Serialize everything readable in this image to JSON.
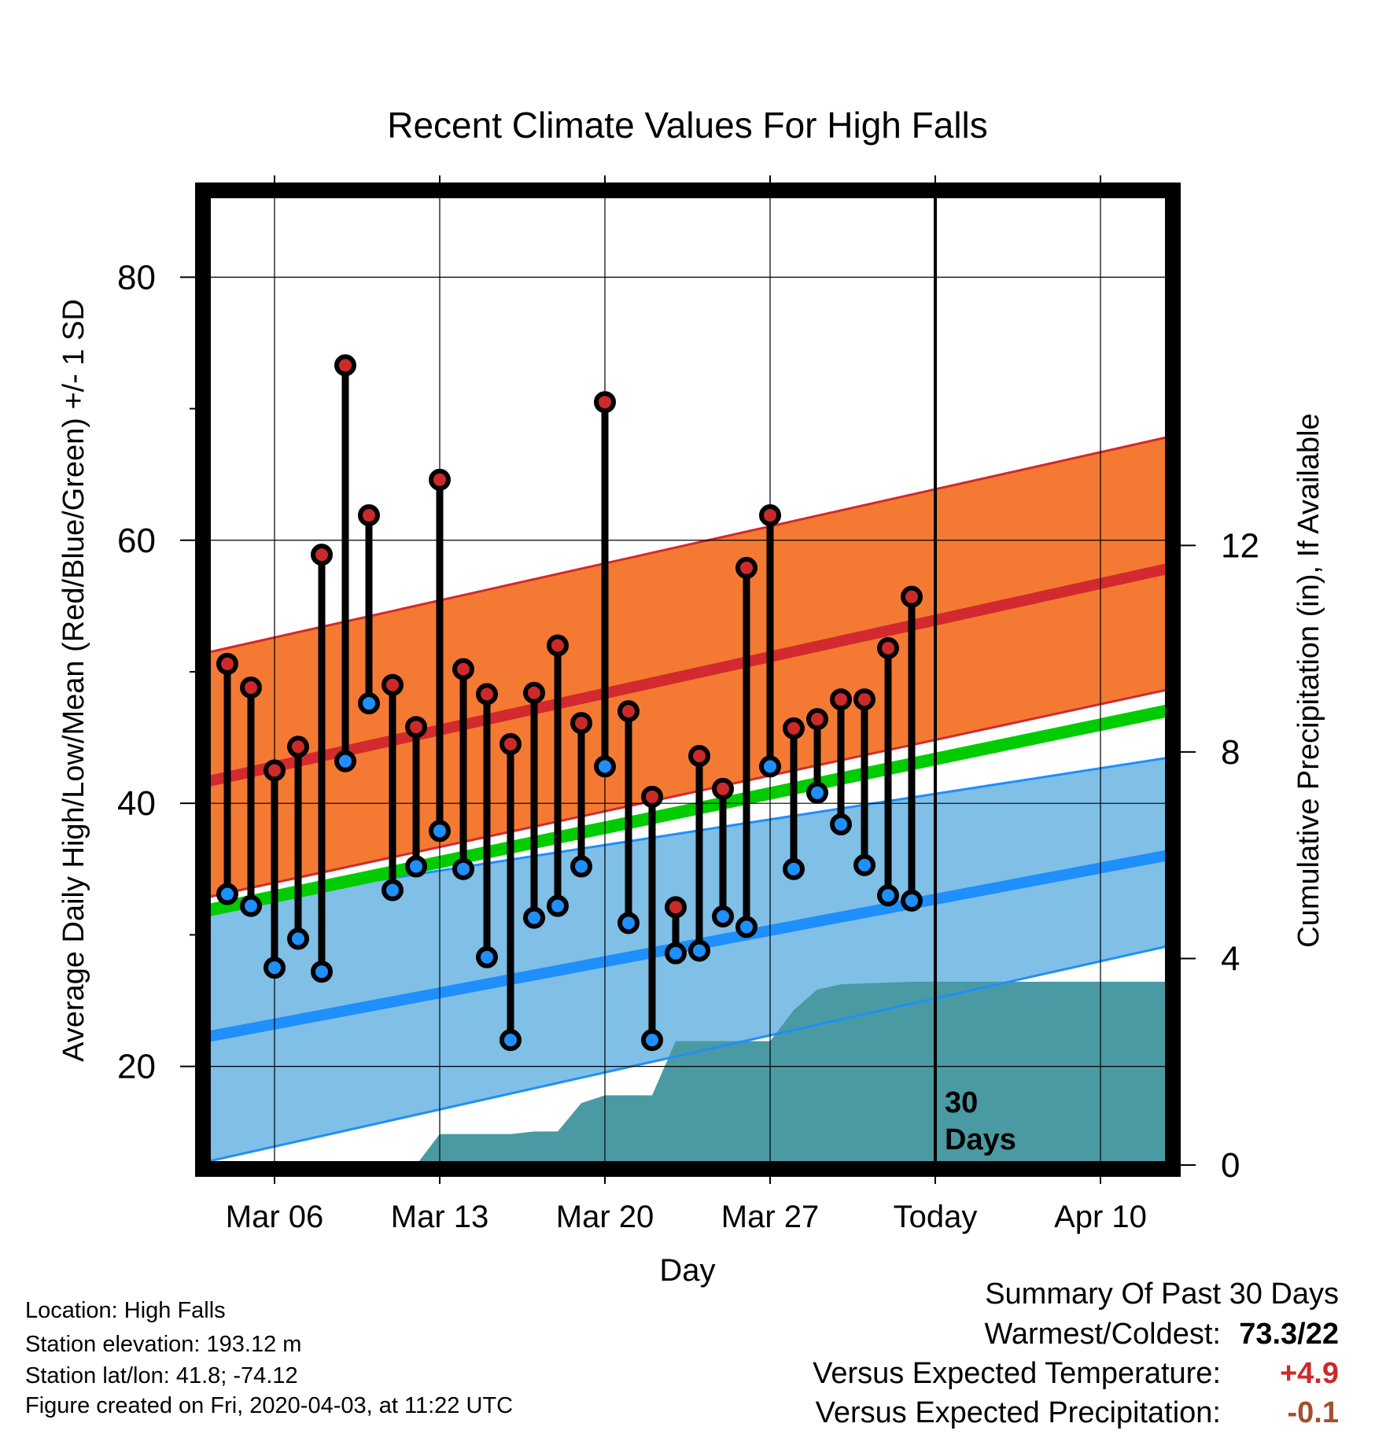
{
  "chart_data": {
    "type": "line",
    "title": "Recent Climate Values For High Falls",
    "xlabel": "Day",
    "ylabel": "Average Daily High/Low/Mean (Red/Blue/Green) +/- 1 SD",
    "y2label": "Cumulative Precipitation (in), If Available",
    "ylim": [
      12.5,
      86.3
    ],
    "y2lim": [
      0,
      18.8
    ],
    "yticks": [
      "20",
      "40",
      "60",
      "80"
    ],
    "y2ticks": [
      "0",
      "4",
      "8",
      "12"
    ],
    "xticks": [
      "Mar 06",
      "Mar 13",
      "Mar 20",
      "Mar 27",
      "Today",
      "Apr 10"
    ],
    "today_label": "30\nDays",
    "days": [
      "Mar 04",
      "Mar 05",
      "Mar 06",
      "Mar 07",
      "Mar 08",
      "Mar 09",
      "Mar 10",
      "Mar 11",
      "Mar 12",
      "Mar 13",
      "Mar 14",
      "Mar 15",
      "Mar 16",
      "Mar 17",
      "Mar 18",
      "Mar 19",
      "Mar 20",
      "Mar 21",
      "Mar 22",
      "Mar 23",
      "Mar 24",
      "Mar 25",
      "Mar 26",
      "Mar 27",
      "Mar 28",
      "Mar 29",
      "Mar 30",
      "Mar 31",
      "Apr 01",
      "Apr 02"
    ],
    "series": [
      {
        "name": "High",
        "values": [
          50.6,
          48.8,
          42.5,
          44.3,
          58.9,
          73.3,
          61.9,
          49.0,
          45.8,
          64.6,
          50.2,
          48.3,
          44.5,
          48.4,
          52.0,
          46.1,
          70.5,
          47.0,
          40.5,
          32.1,
          43.6,
          41.1,
          57.9,
          61.9,
          45.7,
          46.4,
          47.9,
          47.9,
          51.8,
          55.7
        ]
      },
      {
        "name": "Low",
        "values": [
          33.1,
          32.2,
          27.5,
          29.7,
          27.2,
          43.2,
          47.6,
          33.4,
          35.2,
          37.9,
          35.0,
          28.3,
          22.0,
          31.3,
          32.2,
          35.2,
          42.8,
          30.9,
          22.0,
          28.6,
          28.8,
          31.4,
          30.6,
          42.8,
          35.0,
          40.8,
          38.4,
          35.3,
          33.0,
          32.6
        ]
      }
    ],
    "normals_x": [
      "Mar 03",
      "Apr 13"
    ],
    "normal_high": [
      41.6,
      57.9
    ],
    "normal_high_sd_upper": [
      51.4,
      67.9
    ],
    "normal_high_sd_lower": [
      32.8,
      48.7
    ],
    "normal_mean": [
      31.8,
      47.1
    ],
    "normal_low": [
      22.2,
      36.1
    ],
    "normal_low_sd_upper": [
      32.1,
      43.5
    ],
    "normal_low_sd_lower": [
      12.7,
      29.2
    ],
    "precip_days": [
      "Mar 03",
      "Mar 12",
      "Mar 13",
      "Mar 16",
      "Mar 17",
      "Mar 18",
      "Mar 19",
      "Mar 20",
      "Mar 22",
      "Mar 23",
      "Mar 24",
      "Mar 27",
      "Mar 28",
      "Mar 29",
      "Mar 30",
      "Apr 02",
      "Apr 13"
    ],
    "cumulative_precip": [
      0,
      0,
      0.6,
      0.6,
      0.65,
      0.65,
      1.2,
      1.35,
      1.35,
      2.4,
      2.4,
      2.4,
      3.0,
      3.4,
      3.5,
      3.55,
      3.55
    ],
    "colors": {
      "high_band": "#f47a33",
      "high_line": "#d22a2e",
      "low_band": "#80bfe6",
      "low_line": "#1e8ffc",
      "mean_line": "#00cc00",
      "precip": "#4a9aa3",
      "high_dot": "#cc2a2a",
      "low_dot": "#1e8ffc"
    }
  },
  "info": {
    "location": "Location: High Falls",
    "elevation": "Station elevation: 193.12 m",
    "latlon": "Station lat/lon: 41.8; -74.12",
    "created": "Figure created on Fri, 2020-04-03, at 11:22 UTC"
  },
  "summary": {
    "title": "Summary Of Past 30 Days",
    "warm_cold_label": "Warmest/Coldest:",
    "warm_cold_value": "73.3/22",
    "temp_label": "Versus Expected Temperature:",
    "temp_value": "+4.9",
    "temp_color": "#cc2a2a",
    "precip_label": "Versus Expected Precipitation:",
    "precip_value": "-0.1",
    "precip_color": "#a0522d"
  }
}
